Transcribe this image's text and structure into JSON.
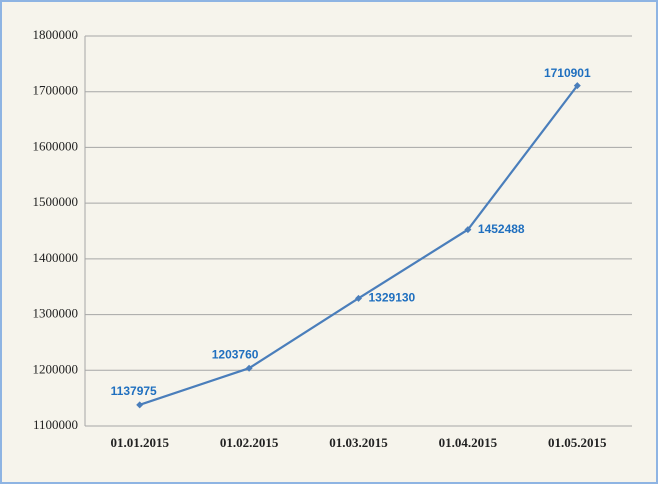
{
  "chart_data": {
    "type": "line",
    "categories": [
      "01.01.2015",
      "01.02.2015",
      "01.03.2015",
      "01.04.2015",
      "01.05.2015"
    ],
    "series": [
      {
        "color": "#4a7ebb",
        "values": [
          1137975,
          1203760,
          1329130,
          1452488,
          1710901
        ]
      }
    ],
    "ylim": [
      1100000,
      1800000
    ],
    "yticks": [
      1100000,
      1200000,
      1300000,
      1400000,
      1500000,
      1600000,
      1700000,
      1800000
    ],
    "grid": true
  }
}
